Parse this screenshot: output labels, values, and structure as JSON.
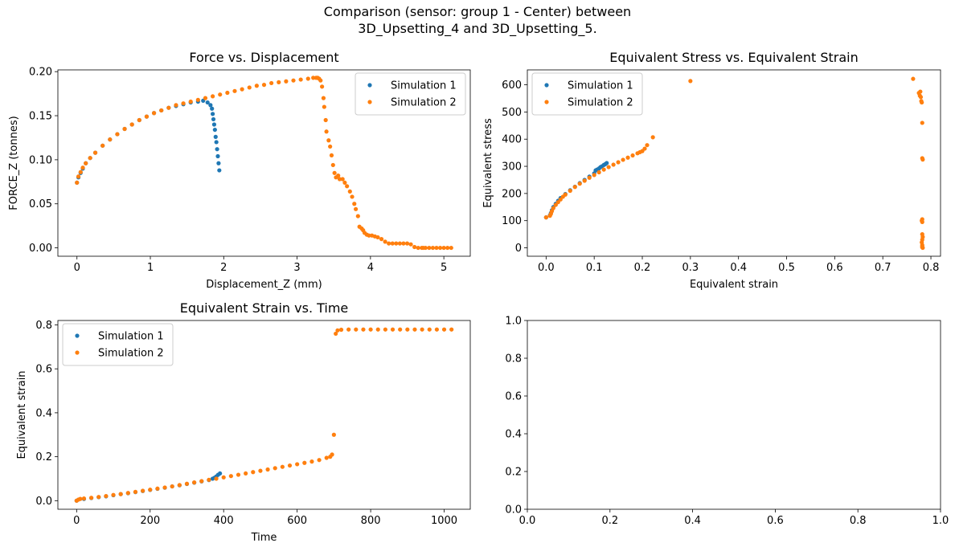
{
  "figure": {
    "title_line1": "Comparison (sensor: group 1 - Center) between",
    "title_line2": "3D_Upsetting_4 and 3D_Upsetting_5."
  },
  "colors": {
    "series1": "#1f77b4",
    "series2": "#ff7f0e"
  },
  "chart_data": [
    {
      "type": "scatter",
      "title": "Force vs. Displacement",
      "xlabel": "Displacement_Z (mm)",
      "ylabel": "FORCE_Z (tonnes)",
      "xlim": [
        -0.26,
        5.36
      ],
      "ylim": [
        -0.0095,
        0.202
      ],
      "xticks": [
        0,
        1,
        2,
        3,
        4,
        5
      ],
      "xtick_labels": [
        "0",
        "1",
        "2",
        "3",
        "4",
        "5"
      ],
      "yticks": [
        0.0,
        0.05,
        0.1,
        0.15,
        0.2
      ],
      "ytick_labels": [
        "0.00",
        "0.05",
        "0.10",
        "0.15",
        "0.20"
      ],
      "legend": "top-right",
      "series": [
        {
          "name": "Simulation 1",
          "x": [
            0.0,
            0.02,
            0.05,
            0.08,
            0.12,
            0.18,
            0.25,
            0.35,
            0.45,
            0.55,
            0.65,
            0.75,
            0.85,
            0.95,
            1.05,
            1.15,
            1.25,
            1.35,
            1.45,
            1.55,
            1.65,
            1.72,
            1.78,
            1.82,
            1.84,
            1.85,
            1.86,
            1.87,
            1.88,
            1.89,
            1.9,
            1.91,
            1.92,
            1.93,
            1.94
          ],
          "y": [
            0.074,
            0.08,
            0.085,
            0.09,
            0.096,
            0.102,
            0.108,
            0.116,
            0.123,
            0.129,
            0.135,
            0.14,
            0.145,
            0.149,
            0.153,
            0.156,
            0.159,
            0.161,
            0.163,
            0.165,
            0.166,
            0.167,
            0.165,
            0.162,
            0.158,
            0.152,
            0.146,
            0.14,
            0.134,
            0.126,
            0.12,
            0.112,
            0.104,
            0.096,
            0.088
          ]
        },
        {
          "name": "Simulation 2",
          "x": [
            0.0,
            0.02,
            0.05,
            0.08,
            0.12,
            0.18,
            0.25,
            0.35,
            0.45,
            0.55,
            0.65,
            0.75,
            0.85,
            0.95,
            1.05,
            1.15,
            1.25,
            1.35,
            1.45,
            1.55,
            1.65,
            1.75,
            1.85,
            1.95,
            2.05,
            2.15,
            2.25,
            2.35,
            2.45,
            2.55,
            2.65,
            2.75,
            2.85,
            2.95,
            3.05,
            3.15,
            3.22,
            3.26,
            3.28,
            3.3,
            3.32,
            3.34,
            3.36,
            3.37,
            3.39,
            3.4,
            3.43,
            3.45,
            3.47,
            3.49,
            3.51,
            3.53,
            3.56,
            3.58,
            3.62,
            3.65,
            3.68,
            3.72,
            3.75,
            3.78,
            3.8,
            3.83,
            3.85,
            3.88,
            3.9,
            3.92,
            3.95,
            3.98,
            4.02,
            4.06,
            4.1,
            4.15,
            4.2,
            4.25,
            4.3,
            4.35,
            4.4,
            4.45,
            4.5,
            4.55,
            4.6,
            4.65,
            4.7,
            4.72,
            4.75,
            4.8,
            4.85,
            4.9,
            4.95,
            5.0,
            5.05,
            5.1
          ],
          "y": [
            0.074,
            0.081,
            0.086,
            0.091,
            0.096,
            0.102,
            0.108,
            0.116,
            0.123,
            0.129,
            0.135,
            0.14,
            0.145,
            0.149,
            0.153,
            0.156,
            0.159,
            0.162,
            0.164,
            0.166,
            0.168,
            0.17,
            0.172,
            0.174,
            0.176,
            0.178,
            0.18,
            0.182,
            0.184,
            0.185,
            0.187,
            0.188,
            0.189,
            0.19,
            0.191,
            0.192,
            0.193,
            0.193,
            0.193,
            0.192,
            0.19,
            0.183,
            0.17,
            0.16,
            0.145,
            0.132,
            0.122,
            0.115,
            0.105,
            0.094,
            0.085,
            0.08,
            0.082,
            0.078,
            0.078,
            0.074,
            0.07,
            0.064,
            0.058,
            0.05,
            0.044,
            0.036,
            0.024,
            0.022,
            0.02,
            0.017,
            0.015,
            0.014,
            0.014,
            0.013,
            0.012,
            0.01,
            0.007,
            0.005,
            0.005,
            0.005,
            0.005,
            0.005,
            0.005,
            0.004,
            0.001,
            0.0,
            0.0,
            0.0,
            0.0,
            0.0,
            0.0,
            0.0,
            0.0,
            0.0,
            0.0,
            0.0
          ]
        }
      ]
    },
    {
      "type": "scatter",
      "title": "Equivalent Stress vs. Equivalent Strain",
      "xlabel": "Equivalent strain",
      "ylabel": "Equivalent stress",
      "xlim": [
        -0.039,
        0.82
      ],
      "ylim": [
        -31,
        655
      ],
      "xticks": [
        0.0,
        0.1,
        0.2,
        0.3,
        0.4,
        0.5,
        0.6,
        0.7,
        0.8
      ],
      "xtick_labels": [
        "0.0",
        "0.1",
        "0.2",
        "0.3",
        "0.4",
        "0.5",
        "0.6",
        "0.7",
        "0.8"
      ],
      "yticks": [
        0,
        100,
        200,
        300,
        400,
        500,
        600
      ],
      "ytick_labels": [
        "0",
        "100",
        "200",
        "300",
        "400",
        "500",
        "600"
      ],
      "legend": "top-left",
      "series": [
        {
          "name": "Simulation 1",
          "x": [
            0.0,
            0.008,
            0.01,
            0.012,
            0.015,
            0.02,
            0.025,
            0.03,
            0.04,
            0.05,
            0.06,
            0.07,
            0.08,
            0.09,
            0.1,
            0.103,
            0.106,
            0.11,
            0.113,
            0.116,
            0.12,
            0.123,
            0.126
          ],
          "y": [
            112,
            120,
            128,
            138,
            150,
            162,
            173,
            183,
            198,
            212,
            225,
            238,
            250,
            262,
            274,
            285,
            288,
            292,
            297,
            300,
            305,
            308,
            312
          ]
        },
        {
          "name": "Simulation 2",
          "x": [
            0.0,
            0.008,
            0.01,
            0.012,
            0.015,
            0.02,
            0.025,
            0.03,
            0.035,
            0.04,
            0.05,
            0.06,
            0.07,
            0.08,
            0.09,
            0.1,
            0.11,
            0.12,
            0.13,
            0.14,
            0.15,
            0.16,
            0.17,
            0.18,
            0.19,
            0.195,
            0.2,
            0.205,
            0.21,
            0.222,
            0.3,
            0.763,
            0.775,
            0.777,
            0.778,
            0.779,
            0.78,
            0.781,
            0.782,
            0.782,
            0.783,
            0.782,
            0.781,
            0.782,
            0.782,
            0.783,
            0.782,
            0.781,
            0.782,
            0.782,
            0.783,
            0.782
          ],
          "y": [
            112,
            118,
            125,
            135,
            146,
            158,
            168,
            178,
            188,
            196,
            210,
            224,
            236,
            247,
            258,
            268,
            278,
            288,
            297,
            306,
            315,
            324,
            332,
            340,
            348,
            352,
            356,
            365,
            378,
            407,
            614,
            622,
            570,
            560,
            575,
            555,
            540,
            535,
            460,
            330,
            325,
            105,
            100,
            95,
            50,
            40,
            30,
            20,
            10,
            5,
            0,
            2
          ]
        }
      ]
    },
    {
      "type": "scatter",
      "title": "Equivalent Strain vs. Time",
      "xlabel": "Time",
      "ylabel": "Equivalent strain",
      "xlim": [
        -51,
        1071
      ],
      "ylim": [
        -0.039,
        0.82
      ],
      "xticks": [
        0,
        200,
        400,
        600,
        800,
        1000
      ],
      "xtick_labels": [
        "0",
        "200",
        "400",
        "600",
        "800",
        "1000"
      ],
      "yticks": [
        0.0,
        0.2,
        0.4,
        0.6,
        0.8
      ],
      "ytick_labels": [
        "0.0",
        "0.2",
        "0.4",
        "0.6",
        "0.8"
      ],
      "legend": "top-left",
      "series": [
        {
          "name": "Simulation 1",
          "x": [
            0,
            20,
            40,
            60,
            80,
            100,
            120,
            140,
            160,
            180,
            200,
            220,
            240,
            260,
            280,
            300,
            320,
            340,
            360,
            370,
            375,
            380,
            385,
            390
          ],
          "y": [
            0.0,
            0.008,
            0.012,
            0.016,
            0.02,
            0.025,
            0.03,
            0.034,
            0.039,
            0.044,
            0.049,
            0.054,
            0.059,
            0.065,
            0.07,
            0.076,
            0.082,
            0.088,
            0.094,
            0.1,
            0.104,
            0.11,
            0.118,
            0.124
          ]
        },
        {
          "name": "Simulation 2",
          "x": [
            0,
            5,
            10,
            20,
            40,
            60,
            80,
            100,
            120,
            140,
            160,
            180,
            200,
            220,
            240,
            260,
            280,
            300,
            320,
            340,
            360,
            380,
            400,
            420,
            440,
            460,
            480,
            500,
            520,
            540,
            560,
            580,
            600,
            620,
            640,
            660,
            680,
            690,
            695,
            700,
            705,
            710,
            720,
            740,
            760,
            780,
            800,
            820,
            840,
            860,
            880,
            900,
            920,
            940,
            960,
            980,
            1000,
            1020
          ],
          "y": [
            0.0,
            0.005,
            0.008,
            0.01,
            0.013,
            0.017,
            0.021,
            0.026,
            0.03,
            0.035,
            0.04,
            0.045,
            0.05,
            0.055,
            0.06,
            0.065,
            0.071,
            0.077,
            0.083,
            0.089,
            0.095,
            0.1,
            0.106,
            0.112,
            0.118,
            0.124,
            0.13,
            0.136,
            0.142,
            0.148,
            0.154,
            0.16,
            0.166,
            0.172,
            0.178,
            0.185,
            0.195,
            0.2,
            0.21,
            0.3,
            0.76,
            0.775,
            0.778,
            0.779,
            0.779,
            0.779,
            0.779,
            0.779,
            0.779,
            0.779,
            0.779,
            0.779,
            0.779,
            0.779,
            0.779,
            0.779,
            0.779,
            0.779
          ]
        }
      ]
    },
    {
      "type": "scatter",
      "title": "",
      "xlabel": "",
      "ylabel": "",
      "xlim": [
        0,
        1
      ],
      "ylim": [
        0,
        1
      ],
      "xticks": [
        0.0,
        0.2,
        0.4,
        0.6,
        0.8,
        1.0
      ],
      "xtick_labels": [
        "0.0",
        "0.2",
        "0.4",
        "0.6",
        "0.8",
        "1.0"
      ],
      "yticks": [
        0.0,
        0.2,
        0.4,
        0.6,
        0.8,
        1.0
      ],
      "ytick_labels": [
        "0.0",
        "0.2",
        "0.4",
        "0.6",
        "0.8",
        "1.0"
      ],
      "legend": "none",
      "series": []
    }
  ]
}
